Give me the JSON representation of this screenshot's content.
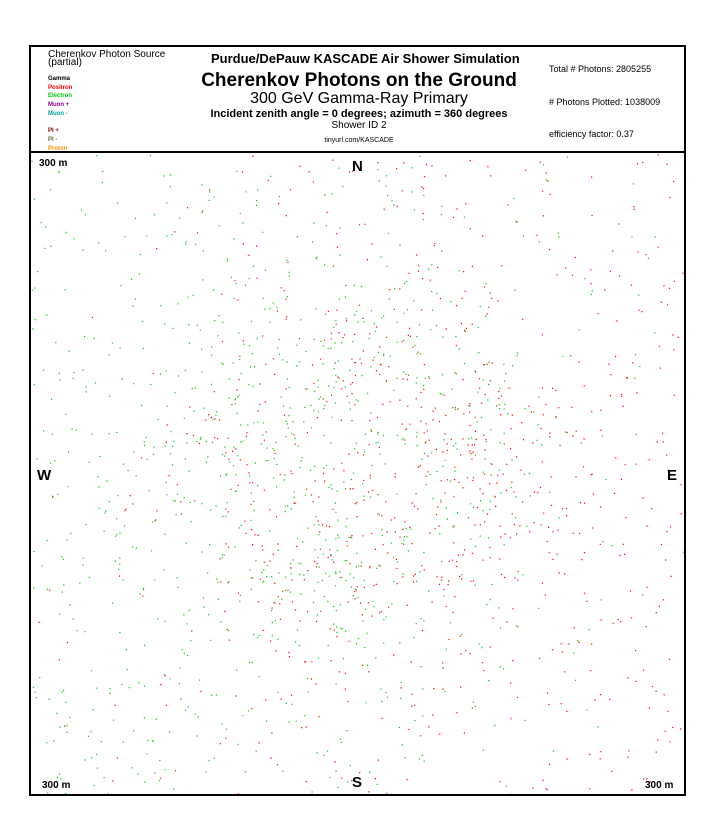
{
  "legend": {
    "title": "Cherenkov Photon Source",
    "subtitle": "(partial)",
    "items": [
      {
        "label": "Gamma",
        "color": "#000000"
      },
      {
        "label": "Positron",
        "color": "#ff0000"
      },
      {
        "label": "Electron",
        "color": "#00cc00"
      },
      {
        "label": "Muon +",
        "color": "#8b008b"
      },
      {
        "label": "Muon -",
        "color": "#00a0a0"
      },
      {
        "label": "",
        "color": "#e8e800"
      },
      {
        "label": "PI +",
        "color": "#8b0000"
      },
      {
        "label": "PI -",
        "color": "#556b2f"
      },
      {
        "label": "Proton",
        "color": "#ff8c00"
      }
    ]
  },
  "header": {
    "sim_title": "Purdue/DePauw KASCADE Air Shower Simulation",
    "main_title": "Cherenkov Photons on the Ground",
    "sub_title": "300 GeV Gamma-Ray Primary",
    "incident": "Incident zenith angle =  0 degrees;  azimuth =  360 degrees",
    "shower_id": "Shower ID 2",
    "url": "tinyurl.com/KASCADE"
  },
  "stats": {
    "total": "Total # Photons: 2805255",
    "plotted": "# Photons Plotted: 1038009",
    "efficiency": "efficiency factor: 0.37"
  },
  "compass": {
    "n": "N",
    "s": "S",
    "e": "E",
    "w": "W"
  },
  "scale": {
    "top_left": "300 m",
    "bottom_left": "300 m",
    "bottom_right": "300 m"
  },
  "chart_data": {
    "type": "scatter",
    "title": "Cherenkov Photons on the Ground",
    "subtitle": "300 GeV Gamma-Ray Primary",
    "xlabel": "",
    "ylabel": "",
    "grid": false,
    "series": [
      {
        "name": "Positron",
        "color": "#ff0000"
      },
      {
        "name": "Electron",
        "color": "#00cc00"
      }
    ],
    "pattern": "photon density ring centered near plot center, ring radius about 120 m, with diffuse halo extending to plot edges; positron (red) photons stronger on east side, electron (green) photons stronger on west side",
    "total_photons": 2805255,
    "photons_plotted": 1038009,
    "efficiency_factor": 0.37
  }
}
